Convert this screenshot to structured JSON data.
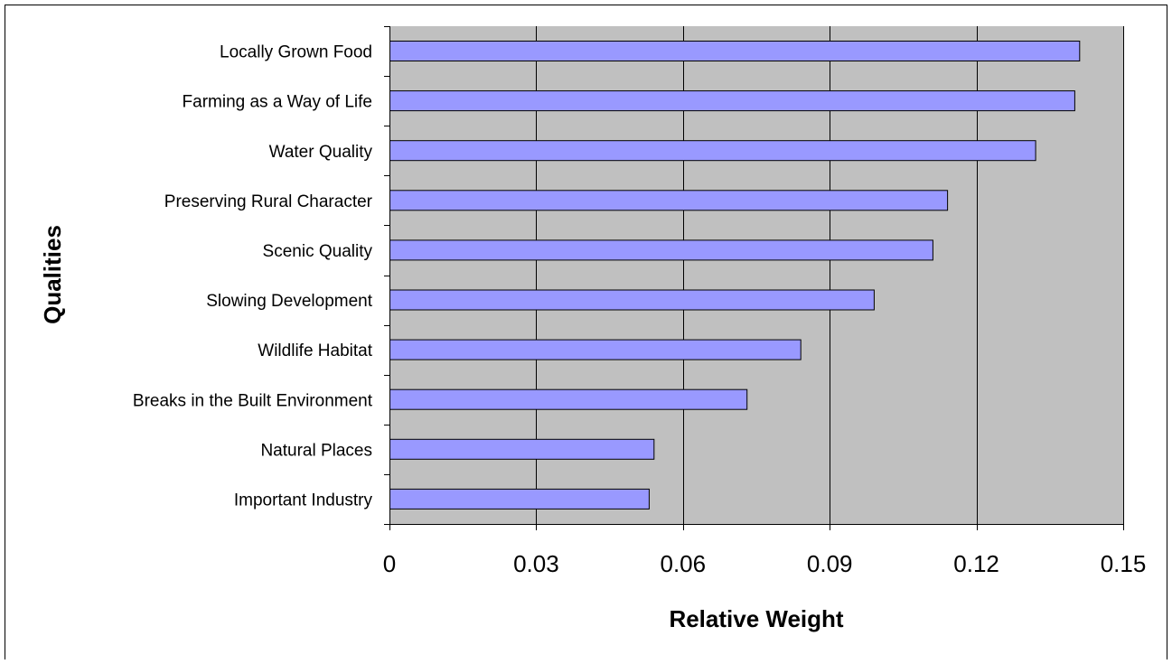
{
  "chart_data": {
    "type": "bar",
    "orientation": "horizontal",
    "title": "",
    "xlabel": "Relative Weight",
    "ylabel": "Qualities",
    "categories": [
      "Locally Grown Food",
      "Farming as a Way of Life",
      "Water Quality",
      "Preserving Rural Character",
      "Scenic Quality",
      "Slowing Development",
      "Wildlife Habitat",
      "Breaks in the Built Environment",
      "Natural Places",
      "Important Industry"
    ],
    "values": [
      0.141,
      0.14,
      0.132,
      0.114,
      0.111,
      0.099,
      0.084,
      0.073,
      0.054,
      0.053
    ],
    "xlim": [
      0,
      0.15
    ],
    "xticks": [
      0,
      0.03,
      0.06,
      0.09,
      0.12,
      0.15
    ],
    "xtick_labels": [
      "0",
      "0.03",
      "0.06",
      "0.09",
      "0.12",
      "0.15"
    ],
    "grid": "vertical",
    "legend": "none",
    "colors": {
      "bar_fill": "#9999ff",
      "bar_stroke": "#000000",
      "plot_background": "#c0c0c0",
      "grid": "#000000"
    }
  }
}
